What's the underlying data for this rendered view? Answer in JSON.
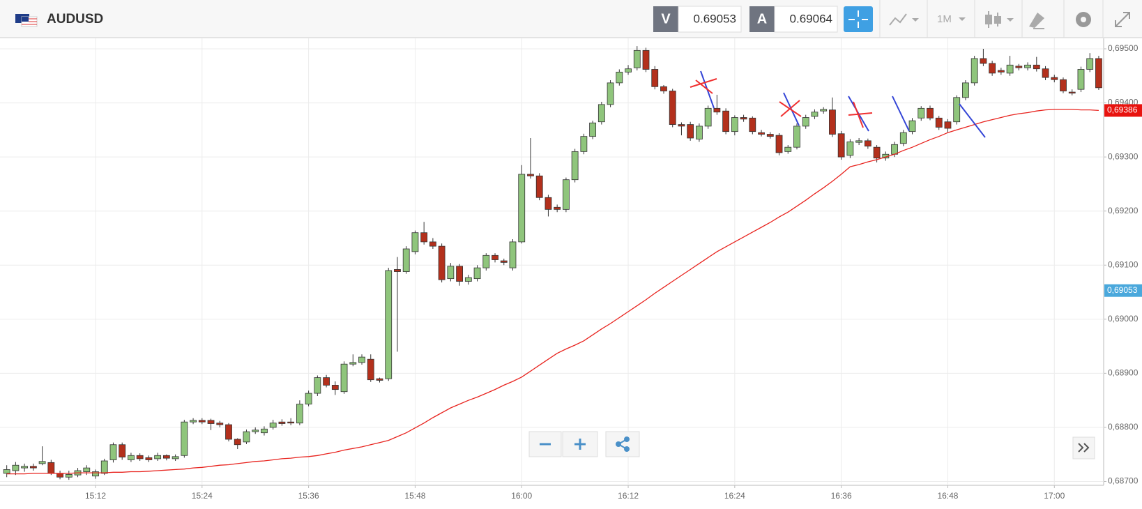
{
  "toolbar": {
    "symbol": "AUDUSD",
    "sell_label": "V",
    "sell_price": "0.69053",
    "buy_label": "A",
    "buy_price": "0.69064",
    "timeframe": "1M"
  },
  "chart_data": {
    "type": "candlestick",
    "categories": [
      null,
      null,
      null,
      null,
      null,
      null,
      null,
      null,
      null,
      null,
      "15:12",
      null,
      null,
      null,
      null,
      null,
      null,
      null,
      null,
      null,
      null,
      null,
      "15:24",
      null,
      null,
      null,
      null,
      null,
      null,
      null,
      null,
      null,
      null,
      null,
      "15:36",
      null,
      null,
      null,
      null,
      null,
      null,
      null,
      null,
      null,
      null,
      null,
      "15:48",
      null,
      null,
      null,
      null,
      null,
      null,
      null,
      null,
      null,
      null,
      null,
      "16:00",
      null,
      null,
      null,
      null,
      null,
      null,
      null,
      null,
      null,
      null,
      null,
      "16:12",
      null,
      null,
      null,
      null,
      null,
      null,
      null,
      null,
      null,
      null,
      null,
      "16:24",
      null,
      null,
      null,
      null,
      null,
      null,
      null,
      null,
      null,
      null,
      null,
      "16:36",
      null,
      null,
      null,
      null,
      null,
      null,
      null,
      null,
      null,
      null,
      null,
      "16:48",
      null,
      null,
      null,
      null,
      null,
      null,
      null,
      null,
      null,
      null,
      null,
      "17:00",
      null,
      null,
      null,
      null,
      null
    ],
    "open": [
      0.68715,
      0.6872,
      0.68725,
      0.68728,
      0.68733,
      0.68735,
      0.68715,
      0.68708,
      0.68712,
      0.68718,
      0.6871,
      0.68715,
      0.6874,
      0.68768,
      0.6874,
      0.68748,
      0.68744,
      0.68742,
      0.68748,
      0.68742,
      0.68748,
      0.6881,
      0.68813,
      0.68813,
      0.68808,
      0.68805,
      0.68778,
      0.68773,
      0.68792,
      0.6879,
      0.688,
      0.6881,
      0.6881,
      0.68808,
      0.68843,
      0.68863,
      0.68892,
      0.68878,
      0.68866,
      0.68917,
      0.6892,
      0.68926,
      0.6889,
      0.6889,
      0.69092,
      0.69088,
      0.69125,
      0.6916,
      0.69143,
      0.69135,
      0.69075,
      0.69098,
      0.6907,
      0.69075,
      0.69095,
      0.69118,
      0.69108,
      0.69095,
      0.69143,
      0.69268,
      0.69265,
      0.69225,
      0.69207,
      0.69203,
      0.69258,
      0.6931,
      0.69338,
      0.69365,
      0.69397,
      0.69437,
      0.69457,
      0.69465,
      0.69497,
      0.69462,
      0.6943,
      0.69422,
      0.6936,
      0.6936,
      0.69333,
      0.69357,
      0.6939,
      0.69385,
      0.69347,
      0.69373,
      0.69372,
      0.69345,
      0.69342,
      0.6934,
      0.6931,
      0.69318,
      0.69357,
      0.69375,
      0.69385,
      0.69387,
      0.69343,
      0.69303,
      0.69327,
      0.6933,
      0.69318,
      0.69298,
      0.69305,
      0.69325,
      0.69347,
      0.69372,
      0.6939,
      0.69372,
      0.69365,
      0.69365,
      0.6941,
      0.69437,
      0.69482,
      0.69473,
      0.6946,
      0.69455,
      0.69468,
      0.69465,
      0.6947,
      0.69463,
      0.69447,
      0.69443,
      0.6942,
      0.69425,
      0.69462,
      0.69482
    ],
    "high": [
      0.6873,
      0.68736,
      0.68733,
      0.68733,
      0.68765,
      0.6874,
      0.6872,
      0.6872,
      0.68725,
      0.6873,
      0.68722,
      0.68742,
      0.68772,
      0.68772,
      0.68753,
      0.68752,
      0.68748,
      0.68753,
      0.6875,
      0.6875,
      0.68814,
      0.68817,
      0.68817,
      0.68816,
      0.68812,
      0.68808,
      0.6878,
      0.68796,
      0.688,
      0.68802,
      0.68814,
      0.68815,
      0.68817,
      0.6885,
      0.68868,
      0.68896,
      0.68897,
      0.68885,
      0.68922,
      0.68935,
      0.68935,
      0.68935,
      0.68892,
      0.69095,
      0.69115,
      0.69135,
      0.69164,
      0.6918,
      0.6915,
      0.6914,
      0.69104,
      0.69102,
      0.69082,
      0.691,
      0.69122,
      0.69122,
      0.69112,
      0.69148,
      0.69285,
      0.69335,
      0.6927,
      0.6923,
      0.69212,
      0.69262,
      0.69315,
      0.69343,
      0.69367,
      0.69402,
      0.69442,
      0.69462,
      0.6947,
      0.69505,
      0.69502,
      0.69468,
      0.69433,
      0.69426,
      0.69364,
      0.69365,
      0.69362,
      0.69395,
      0.69415,
      0.6939,
      0.69377,
      0.69378,
      0.69375,
      0.6935,
      0.69346,
      0.69344,
      0.69322,
      0.69362,
      0.69378,
      0.69388,
      0.69392,
      0.6941,
      0.69348,
      0.69333,
      0.69335,
      0.69334,
      0.69322,
      0.6931,
      0.69328,
      0.6935,
      0.69372,
      0.69394,
      0.69395,
      0.69376,
      0.6937,
      0.69414,
      0.69442,
      0.69487,
      0.695,
      0.69478,
      0.69465,
      0.69487,
      0.69472,
      0.69475,
      0.69485,
      0.69468,
      0.69452,
      0.69447,
      0.69425,
      0.69467,
      0.69492,
      0.69487
    ],
    "low": [
      0.68708,
      0.68712,
      0.68718,
      0.6872,
      0.6873,
      0.68712,
      0.68704,
      0.68703,
      0.68708,
      0.68712,
      0.68705,
      0.68712,
      0.68735,
      0.6874,
      0.68736,
      0.68738,
      0.68736,
      0.68738,
      0.68739,
      0.68738,
      0.68744,
      0.68806,
      0.68806,
      0.68795,
      0.688,
      0.68774,
      0.6876,
      0.68769,
      0.68788,
      0.68785,
      0.68796,
      0.68803,
      0.68804,
      0.68804,
      0.68839,
      0.68858,
      0.68874,
      0.6886,
      0.68862,
      0.68913,
      0.68916,
      0.68884,
      0.68883,
      0.68886,
      0.6894,
      0.69084,
      0.6912,
      0.69138,
      0.6913,
      0.69068,
      0.6907,
      0.69062,
      0.69064,
      0.6907,
      0.6909,
      0.69105,
      0.691,
      0.6909,
      0.6914,
      0.6926,
      0.6922,
      0.6919,
      0.69198,
      0.69198,
      0.69253,
      0.69305,
      0.69333,
      0.6936,
      0.69392,
      0.69432,
      0.69452,
      0.6946,
      0.69457,
      0.69425,
      0.69417,
      0.69355,
      0.6934,
      0.6933,
      0.69328,
      0.69352,
      0.69378,
      0.69342,
      0.6934,
      0.69365,
      0.69342,
      0.69338,
      0.69334,
      0.69303,
      0.69306,
      0.69314,
      0.69352,
      0.6937,
      0.6938,
      0.69337,
      0.69295,
      0.69298,
      0.69322,
      0.69315,
      0.6929,
      0.69293,
      0.693,
      0.6932,
      0.69342,
      0.69367,
      0.69368,
      0.6935,
      0.69346,
      0.6936,
      0.69405,
      0.69432,
      0.69468,
      0.6945,
      0.69452,
      0.6945,
      0.6946,
      0.6946,
      0.69458,
      0.69442,
      0.69438,
      0.69418,
      0.69414,
      0.6942,
      0.69457,
      0.69424
    ],
    "close": [
      0.68722,
      0.6873,
      0.68728,
      0.68725,
      0.68737,
      0.68715,
      0.68708,
      0.68713,
      0.6872,
      0.68725,
      0.68718,
      0.68738,
      0.68768,
      0.68745,
      0.68748,
      0.68742,
      0.6874,
      0.68748,
      0.68743,
      0.68746,
      0.6881,
      0.68813,
      0.6881,
      0.68807,
      0.68805,
      0.68778,
      0.68768,
      0.68792,
      0.68795,
      0.68797,
      0.68808,
      0.68807,
      0.68808,
      0.68843,
      0.68863,
      0.68892,
      0.68878,
      0.6887,
      0.68917,
      0.6892,
      0.6893,
      0.68888,
      0.68887,
      0.6909,
      0.69088,
      0.6913,
      0.6916,
      0.69143,
      0.69135,
      0.69073,
      0.69098,
      0.6907,
      0.69077,
      0.69095,
      0.69118,
      0.6911,
      0.69105,
      0.69143,
      0.69268,
      0.69265,
      0.69225,
      0.69203,
      0.69203,
      0.69258,
      0.6931,
      0.69338,
      0.69363,
      0.69397,
      0.69437,
      0.69457,
      0.69463,
      0.69497,
      0.69462,
      0.6943,
      0.69422,
      0.6936,
      0.69357,
      0.69335,
      0.69357,
      0.6939,
      0.69383,
      0.69347,
      0.69373,
      0.6937,
      0.69347,
      0.69342,
      0.69338,
      0.69308,
      0.69318,
      0.69357,
      0.69373,
      0.69383,
      0.69388,
      0.69342,
      0.693,
      0.69328,
      0.6933,
      0.6932,
      0.69298,
      0.69305,
      0.69323,
      0.69345,
      0.69367,
      0.6939,
      0.69372,
      0.69355,
      0.69353,
      0.6941,
      0.69437,
      0.69482,
      0.69473,
      0.69455,
      0.69457,
      0.6947,
      0.69465,
      0.6947,
      0.69463,
      0.69447,
      0.69443,
      0.69422,
      0.69418,
      0.69462,
      0.69482,
      0.69428
    ],
    "up_color": "#8fc57c",
    "down_color": "#b3301c",
    "ma": {
      "color": "#e8231e",
      "values": [
        0.68714,
        0.68714,
        0.68714,
        0.68715,
        0.68715,
        0.68715,
        0.68715,
        0.68715,
        0.68716,
        0.68716,
        0.68716,
        0.68716,
        0.68717,
        0.68717,
        0.68718,
        0.68718,
        0.68719,
        0.6872,
        0.68721,
        0.68722,
        0.68723,
        0.68725,
        0.68726,
        0.68728,
        0.6873,
        0.68731,
        0.68733,
        0.68735,
        0.68737,
        0.68738,
        0.6874,
        0.68742,
        0.68743,
        0.68745,
        0.68746,
        0.68748,
        0.68751,
        0.68754,
        0.68758,
        0.68761,
        0.68764,
        0.68768,
        0.68772,
        0.68776,
        0.68783,
        0.6879,
        0.68799,
        0.68808,
        0.68818,
        0.68827,
        0.68836,
        0.68843,
        0.6885,
        0.68856,
        0.68863,
        0.6887,
        0.68878,
        0.68885,
        0.68893,
        0.68904,
        0.68915,
        0.68926,
        0.68937,
        0.68945,
        0.68952,
        0.6896,
        0.68971,
        0.68982,
        0.68992,
        0.69003,
        0.69014,
        0.69025,
        0.69036,
        0.69048,
        0.69059,
        0.6907,
        0.69081,
        0.69092,
        0.69103,
        0.69114,
        0.69125,
        0.69134,
        0.69143,
        0.69152,
        0.69161,
        0.6917,
        0.69179,
        0.69189,
        0.69198,
        0.69209,
        0.6922,
        0.69232,
        0.69243,
        0.69255,
        0.69268,
        0.69282,
        0.69286,
        0.69291,
        0.69295,
        0.693,
        0.69305,
        0.69312,
        0.69318,
        0.69325,
        0.69332,
        0.69338,
        0.69345,
        0.6935,
        0.69355,
        0.6936,
        0.69365,
        0.69369,
        0.69373,
        0.69377,
        0.6938,
        0.69382,
        0.69385,
        0.69387,
        0.69388,
        0.69388,
        0.69388,
        0.69387,
        0.69387,
        0.69386
      ]
    },
    "ylim": [
      0.687,
      0.695
    ],
    "yticks": [
      {
        "value": 0.695,
        "label": "0,69500"
      },
      {
        "value": 0.694,
        "label": "0,69400"
      },
      {
        "value": 0.693,
        "label": "0,69300"
      },
      {
        "value": 0.692,
        "label": "0,69200"
      },
      {
        "value": 0.691,
        "label": "0,69100"
      },
      {
        "value": 0.69,
        "label": "0,69000"
      },
      {
        "value": 0.689,
        "label": "0,68900"
      },
      {
        "value": 0.688,
        "label": "0,68800"
      },
      {
        "value": 0.687,
        "label": "0,68700"
      }
    ],
    "last_price": {
      "value": 0.69386,
      "label": "0,69386",
      "color": "#e8130f"
    },
    "bid_price": {
      "value": 0.69053,
      "label": "0,69053",
      "color": "#4aa8dc"
    },
    "grid": true
  }
}
